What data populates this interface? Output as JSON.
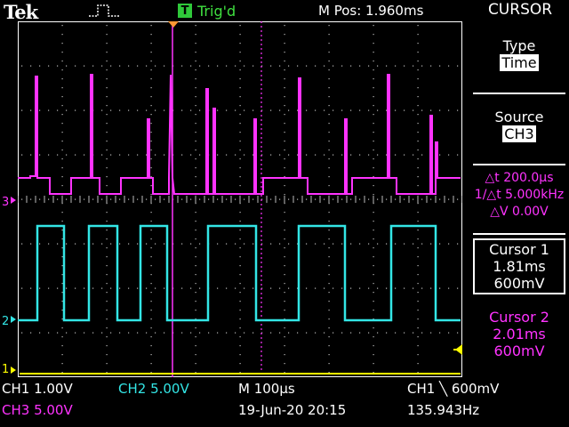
{
  "header": {
    "brand": "Tek",
    "trigger_state": "Trig'd",
    "trigger_badge": "T",
    "m_pos": "M Pos: 1.960ms",
    "menu_title": "CURSOR"
  },
  "side_menu": {
    "type_label": "Type",
    "type_value": "Time",
    "source_label": "Source",
    "source_value": "CH3",
    "delta_t": "△t 200.0μs",
    "freq": "1/△t 5.000kHz",
    "delta_v": "△V 0.00V",
    "cursor1_label": "Cursor 1",
    "cursor1_time": "1.81ms",
    "cursor1_volt": "600mV",
    "cursor2_label": "Cursor 2",
    "cursor2_time": "2.01ms",
    "cursor2_volt": "600mV"
  },
  "markers": {
    "ch3": "3",
    "ch2": "2",
    "ch1": "1"
  },
  "status": {
    "ch1": "CH1  1.00V",
    "ch2": "CH2  5.00V",
    "timebase": "M 100μs",
    "trigger": "CH1 ╲ 600mV",
    "ch3": "CH3  5.00V",
    "datetime": "19-Jun-20 20:15",
    "frequency": "135.943Hz"
  },
  "colors": {
    "ch1": "#ffff00",
    "ch2": "#33e6e6",
    "ch3": "#ff33ff",
    "trigger_green": "#3fe03f",
    "background": "#000000"
  }
}
